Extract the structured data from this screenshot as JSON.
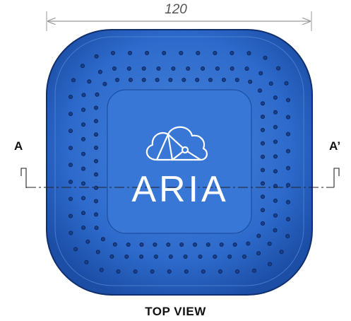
{
  "dimension": {
    "value": "120"
  },
  "section": {
    "left_label": "A",
    "right_label": "A’"
  },
  "logo": {
    "brand": "ARIA",
    "icon": "cloud-network-icon"
  },
  "view": {
    "title": "TOP VIEW"
  },
  "colors": {
    "body_fill": "#2f6fd0",
    "body_edge": "#123a82",
    "panel_fill": "#3a78d6",
    "dimension_line": "#999999",
    "section_line": "#222222"
  }
}
